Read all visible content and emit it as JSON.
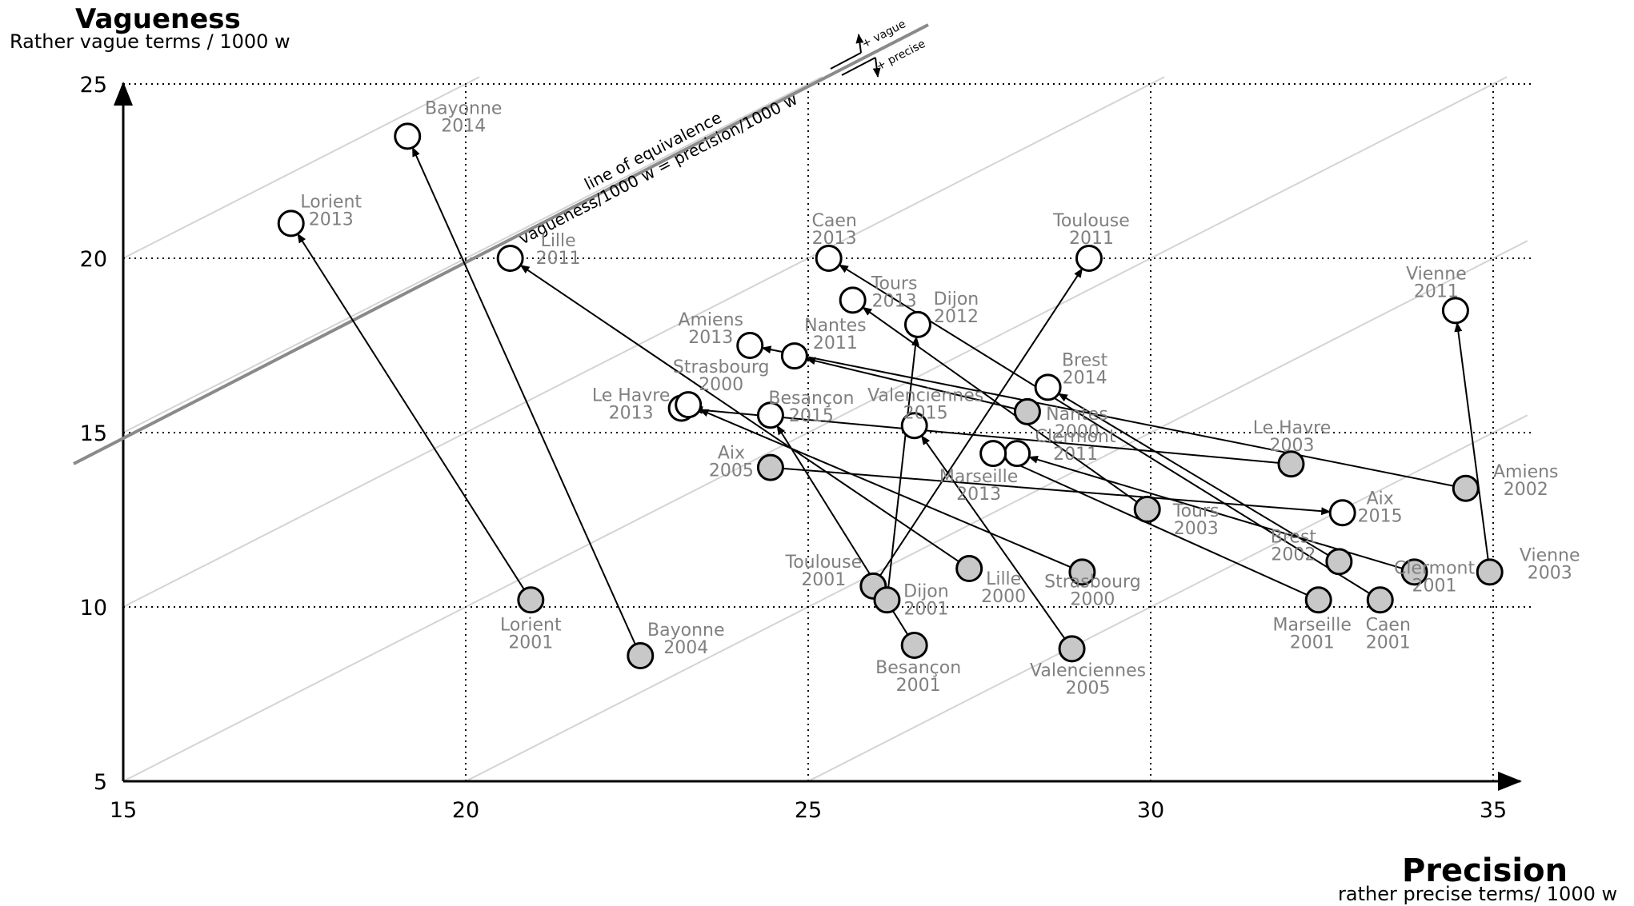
{
  "chart_data": {
    "type": "scatter",
    "title": "",
    "ylabel": "Vagueness",
    "ylabel_sub": "Rather vague terms / 1000 w",
    "xlabel": "Precision",
    "xlabel_sub": "rather precise terms/ 1000 w",
    "xlim": [
      15,
      35
    ],
    "ylim": [
      5,
      25
    ],
    "xticks": [
      15,
      20,
      25,
      30,
      35
    ],
    "yticks": [
      5,
      10,
      15,
      20,
      25
    ],
    "grid": "dotted at ticks",
    "equivalence_line": {
      "label_1": "line of equivalence",
      "label_2": "vagueness/1000 w = precision/1000 w",
      "up_label": "+ vague",
      "down_label": "+ precise"
    },
    "series": [
      {
        "name": "Lorient",
        "from": {
          "year": "2001",
          "x": 20.95,
          "y": 10.2
        },
        "to": {
          "year": "2013",
          "x": 17.45,
          "y": 21.0
        }
      },
      {
        "name": "Bayonne",
        "from": {
          "year": "2004",
          "x": 22.55,
          "y": 8.6
        },
        "to": {
          "year": "2014",
          "x": 19.15,
          "y": 23.5
        }
      },
      {
        "name": "Lille",
        "from": {
          "year": "2000",
          "x": 27.35,
          "y": 11.1
        },
        "to": {
          "year": "2011",
          "x": 20.65,
          "y": 20.0
        }
      },
      {
        "name": "Caen",
        "from": {
          "year": "2001",
          "x": 33.35,
          "y": 10.2
        },
        "to": {
          "year": "2013",
          "x": 25.3,
          "y": 20.0
        }
      },
      {
        "name": "Toulouse",
        "from": {
          "year": "2001",
          "x": 25.95,
          "y": 10.6
        },
        "to": {
          "year": "2011",
          "x": 29.1,
          "y": 20.0
        }
      },
      {
        "name": "Tours",
        "from": {
          "year": "2003",
          "x": 29.95,
          "y": 12.8
        },
        "to": {
          "year": "2013",
          "x": 25.65,
          "y": 18.8
        }
      },
      {
        "name": "Dijon",
        "from": {
          "year": "2001",
          "x": 26.15,
          "y": 10.2
        },
        "to": {
          "year": "2012",
          "x": 26.6,
          "y": 18.1
        }
      },
      {
        "name": "Amiens",
        "from": {
          "year": "2002",
          "x": 34.6,
          "y": 13.4
        },
        "to": {
          "year": "2013",
          "x": 24.15,
          "y": 17.5
        }
      },
      {
        "name": "Nantes",
        "from": {
          "year": "2000",
          "x": 28.2,
          "y": 15.6
        },
        "to": {
          "year": "2011",
          "x": 24.8,
          "y": 17.2
        }
      },
      {
        "name": "Brest",
        "from": {
          "year": "2002",
          "x": 32.75,
          "y": 11.3
        },
        "to": {
          "year": "2014",
          "x": 28.5,
          "y": 16.3
        }
      },
      {
        "name": "Le Havre",
        "from": {
          "year": "2003",
          "x": 32.05,
          "y": 14.1
        },
        "to": {
          "year": "2013",
          "x": 23.15,
          "y": 15.7
        }
      },
      {
        "name": "Strasbourg",
        "from": {
          "year": "2000",
          "x": 29.0,
          "y": 11.0
        },
        "to": {
          "year": "2000",
          "x": 23.25,
          "y": 15.8
        }
      },
      {
        "name": "Besançon",
        "from": {
          "year": "2001",
          "x": 26.55,
          "y": 8.9
        },
        "to": {
          "year": "2015",
          "x": 24.45,
          "y": 15.5
        }
      },
      {
        "name": "Valenciennes",
        "from": {
          "year": "2005",
          "x": 28.85,
          "y": 8.8
        },
        "to": {
          "year": "2015",
          "x": 26.55,
          "y": 15.2
        }
      },
      {
        "name": "Clermont",
        "from": {
          "year": "2001",
          "x": 33.85,
          "y": 11.0
        },
        "to": {
          "year": "2011",
          "x": 28.05,
          "y": 14.4
        }
      },
      {
        "name": "Marseille",
        "from": {
          "year": "2001",
          "x": 32.45,
          "y": 10.2
        },
        "to": {
          "year": "2013",
          "x": 27.7,
          "y": 14.4
        }
      },
      {
        "name": "Aix",
        "from": {
          "year": "2005",
          "x": 24.45,
          "y": 14.0
        },
        "to": {
          "year": "2015",
          "x": 32.8,
          "y": 12.7
        }
      },
      {
        "name": "Vienne",
        "from": {
          "year": "2003",
          "x": 34.95,
          "y": 11.0
        },
        "to": {
          "year": "2011",
          "x": 34.45,
          "y": 18.5
        }
      }
    ]
  }
}
